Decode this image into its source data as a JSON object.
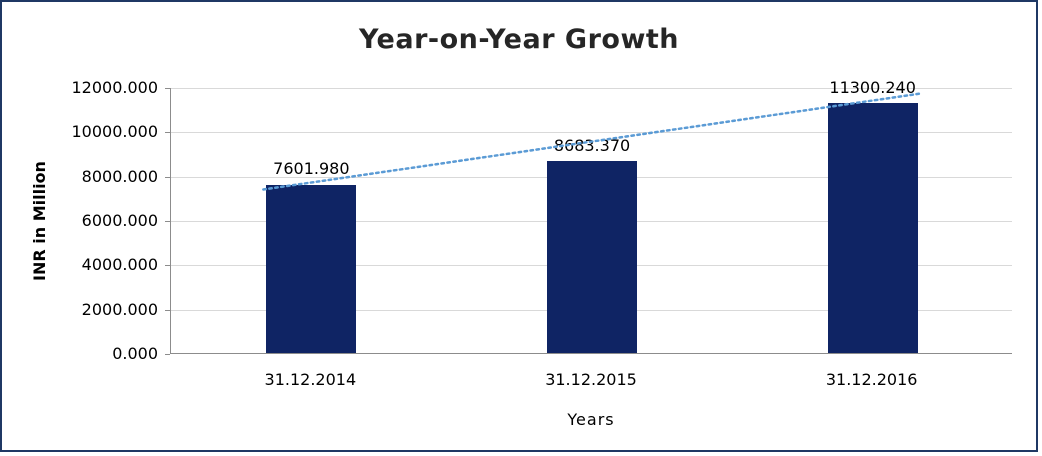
{
  "chart_data": {
    "type": "bar",
    "title": "Year-on-Year Growth",
    "categories": [
      "31.12.2014",
      "31.12.2015",
      "31.12.2016"
    ],
    "values": [
      7601.98,
      8683.37,
      11300.24
    ],
    "data_labels": [
      "7601.980",
      "8683.370",
      "11300.240"
    ],
    "xlabel": "Years",
    "ylabel": "INR in Million",
    "ylim": [
      0,
      12000
    ],
    "ytick_step": 2000,
    "ytick_labels": [
      "0.000",
      "2000.000",
      "4000.000",
      "6000.000",
      "8000.000",
      "10000.000",
      "12000.000"
    ],
    "grid": true,
    "legend": "none",
    "bar_color": "#0f2464",
    "trendline": {
      "type": "linear",
      "style": "dotted",
      "color": "#5b9bd5"
    },
    "frame_border_color": "#1f3864"
  }
}
